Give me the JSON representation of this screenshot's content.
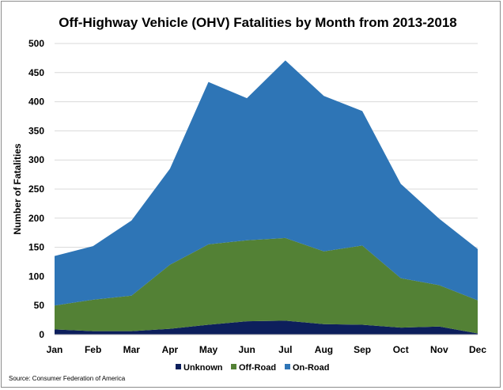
{
  "chart_data": {
    "type": "area",
    "stacked": true,
    "title": "Off-Highway Vehicle (OHV) Fatalities by Month from 2013-2018",
    "xlabel": "",
    "ylabel": "Number of Fatalities",
    "ylim": [
      0,
      500
    ],
    "yticks": [
      "0",
      "50",
      "100",
      "150",
      "200",
      "250",
      "300",
      "350",
      "400",
      "450",
      "500"
    ],
    "grid": true,
    "legend_position": "bottom",
    "categories": [
      "Jan",
      "Feb",
      "Mar",
      "Apr",
      "May",
      "Jun",
      "Jul",
      "Aug",
      "Sep",
      "Oct",
      "Nov",
      "Dec"
    ],
    "series": [
      {
        "name": "Unknown",
        "color": "#0d1f5c",
        "values": [
          9,
          6,
          6,
          10,
          17,
          23,
          24,
          18,
          17,
          12,
          14,
          2
        ]
      },
      {
        "name": "Off-Road",
        "color": "#538135",
        "values": [
          41,
          54,
          61,
          110,
          138,
          139,
          142,
          125,
          136,
          85,
          71,
          57
        ]
      },
      {
        "name": "On-Road",
        "color": "#2e75b6",
        "values": [
          85,
          92,
          129,
          165,
          279,
          244,
          305,
          267,
          231,
          162,
          114,
          88
        ]
      }
    ]
  },
  "source": "Source: Consumer Federation of America"
}
